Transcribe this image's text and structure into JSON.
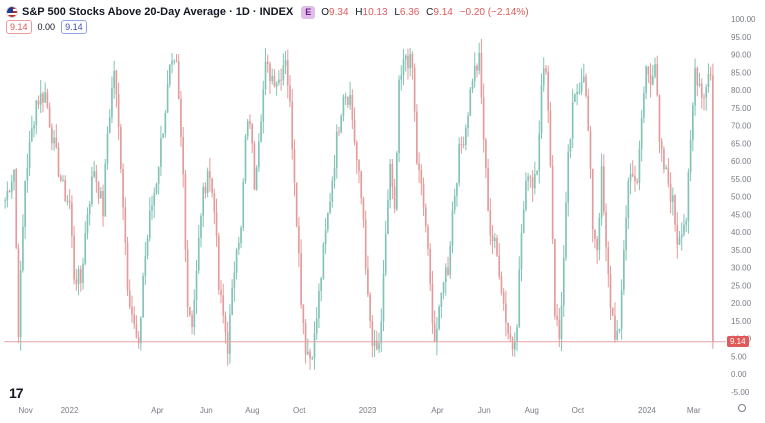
{
  "header": {
    "title": "S&P 500 Stocks Above 20-Day Average · 1D · INDEX",
    "badge": "E",
    "ohlc": [
      {
        "label": "O",
        "value": "9.34"
      },
      {
        "label": "H",
        "value": "10.13"
      },
      {
        "label": "L",
        "value": "6.36"
      },
      {
        "label": "C",
        "value": "9.14"
      },
      {
        "label": "",
        "value": "−0.20 (−2.14%)"
      }
    ]
  },
  "indicators": {
    "last_value": "9.14",
    "zero_value": "0.00",
    "blue_value": "9.14"
  },
  "colors": {
    "up": "#82c3b6",
    "down": "#e39b9b",
    "axis_text": "#787b86",
    "price_tag": "#e05a5a"
  },
  "chart_data": {
    "type": "candlestick",
    "ylim": [
      -5,
      100
    ],
    "y_ticks": [
      "100.00",
      "95.00",
      "90.00",
      "85.00",
      "80.00",
      "75.00",
      "70.00",
      "65.00",
      "60.00",
      "55.00",
      "50.00",
      "45.00",
      "40.00",
      "35.00",
      "30.00",
      "25.00",
      "20.00",
      "15.00",
      "10.00",
      "5.00",
      "0.00",
      "-5.00"
    ],
    "x_ticks": [
      {
        "label": "Nov",
        "pos": 0.03
      },
      {
        "label": "2022",
        "pos": 0.091
      },
      {
        "label": "Apr",
        "pos": 0.213
      },
      {
        "label": "Jun",
        "pos": 0.281
      },
      {
        "label": "Aug",
        "pos": 0.345
      },
      {
        "label": "Oct",
        "pos": 0.41
      },
      {
        "label": "2023",
        "pos": 0.505
      },
      {
        "label": "Apr",
        "pos": 0.602
      },
      {
        "label": "Jun",
        "pos": 0.667
      },
      {
        "label": "Aug",
        "pos": 0.733
      },
      {
        "label": "Oct",
        "pos": 0.797
      },
      {
        "label": "2024",
        "pos": 0.893
      },
      {
        "label": "Mar",
        "pos": 0.958
      }
    ],
    "last_price": 9.14,
    "last_price_label": "9.14",
    "keypoints": [
      [
        0,
        49
      ],
      [
        4,
        58
      ],
      [
        6,
        13
      ],
      [
        9,
        55
      ],
      [
        14,
        77
      ],
      [
        18,
        79
      ],
      [
        22,
        64
      ],
      [
        26,
        52
      ],
      [
        29,
        48
      ],
      [
        31,
        28
      ],
      [
        34,
        26
      ],
      [
        37,
        46
      ],
      [
        40,
        58
      ],
      [
        44,
        46
      ],
      [
        46,
        68
      ],
      [
        49,
        86
      ],
      [
        52,
        60
      ],
      [
        55,
        26
      ],
      [
        58,
        13
      ],
      [
        60,
        6
      ],
      [
        62,
        28
      ],
      [
        65,
        44
      ],
      [
        68,
        55
      ],
      [
        71,
        70
      ],
      [
        74,
        85
      ],
      [
        77,
        86
      ],
      [
        80,
        56
      ],
      [
        82,
        20
      ],
      [
        84,
        15
      ],
      [
        86,
        28
      ],
      [
        88,
        46
      ],
      [
        91,
        58
      ],
      [
        94,
        48
      ],
      [
        96,
        24
      ],
      [
        98,
        16
      ],
      [
        100,
        8
      ],
      [
        102,
        22
      ],
      [
        104,
        38
      ],
      [
        106,
        40
      ],
      [
        108,
        66
      ],
      [
        110,
        72
      ],
      [
        112,
        54
      ],
      [
        114,
        68
      ],
      [
        117,
        86
      ],
      [
        120,
        84
      ],
      [
        123,
        83
      ],
      [
        126,
        90
      ],
      [
        128,
        75
      ],
      [
        130,
        56
      ],
      [
        133,
        22
      ],
      [
        135,
        8
      ],
      [
        137,
        5
      ],
      [
        139,
        10
      ],
      [
        141,
        22
      ],
      [
        143,
        34
      ],
      [
        146,
        50
      ],
      [
        149,
        66
      ],
      [
        152,
        80
      ],
      [
        155,
        78
      ],
      [
        158,
        60
      ],
      [
        161,
        44
      ],
      [
        163,
        20
      ],
      [
        165,
        8
      ],
      [
        167,
        6
      ],
      [
        169,
        12
      ],
      [
        171,
        40
      ],
      [
        173,
        58
      ],
      [
        175,
        44
      ],
      [
        177,
        80
      ],
      [
        180,
        90
      ],
      [
        183,
        86
      ],
      [
        185,
        60
      ],
      [
        187,
        52
      ],
      [
        189,
        42
      ],
      [
        191,
        24
      ],
      [
        193,
        10
      ],
      [
        195,
        16
      ],
      [
        197,
        28
      ],
      [
        199,
        30
      ],
      [
        201,
        46
      ],
      [
        204,
        62
      ],
      [
        207,
        70
      ],
      [
        210,
        84
      ],
      [
        213,
        88
      ],
      [
        216,
        56
      ],
      [
        218,
        40
      ],
      [
        220,
        36
      ],
      [
        222,
        30
      ],
      [
        224,
        20
      ],
      [
        226,
        12
      ],
      [
        228,
        8
      ],
      [
        230,
        16
      ],
      [
        232,
        40
      ],
      [
        235,
        58
      ],
      [
        237,
        54
      ],
      [
        239,
        60
      ],
      [
        241,
        80
      ],
      [
        243,
        88
      ],
      [
        245,
        60
      ],
      [
        247,
        18
      ],
      [
        249,
        10
      ],
      [
        251,
        32
      ],
      [
        253,
        60
      ],
      [
        255,
        74
      ],
      [
        257,
        80
      ],
      [
        260,
        86
      ],
      [
        262,
        68
      ],
      [
        264,
        42
      ],
      [
        266,
        36
      ],
      [
        268,
        56
      ],
      [
        270,
        34
      ],
      [
        272,
        20
      ],
      [
        274,
        12
      ],
      [
        276,
        10
      ],
      [
        278,
        36
      ],
      [
        280,
        54
      ],
      [
        282,
        58
      ],
      [
        284,
        52
      ],
      [
        286,
        72
      ],
      [
        288,
        86
      ],
      [
        290,
        84
      ],
      [
        292,
        88
      ],
      [
        294,
        64
      ],
      [
        296,
        58
      ],
      [
        298,
        54
      ],
      [
        300,
        48
      ],
      [
        302,
        38
      ],
      [
        304,
        42
      ],
      [
        306,
        44
      ],
      [
        308,
        64
      ],
      [
        310,
        86
      ],
      [
        312,
        82
      ],
      [
        314,
        78
      ],
      [
        316,
        86
      ],
      [
        318,
        82
      ]
    ]
  }
}
